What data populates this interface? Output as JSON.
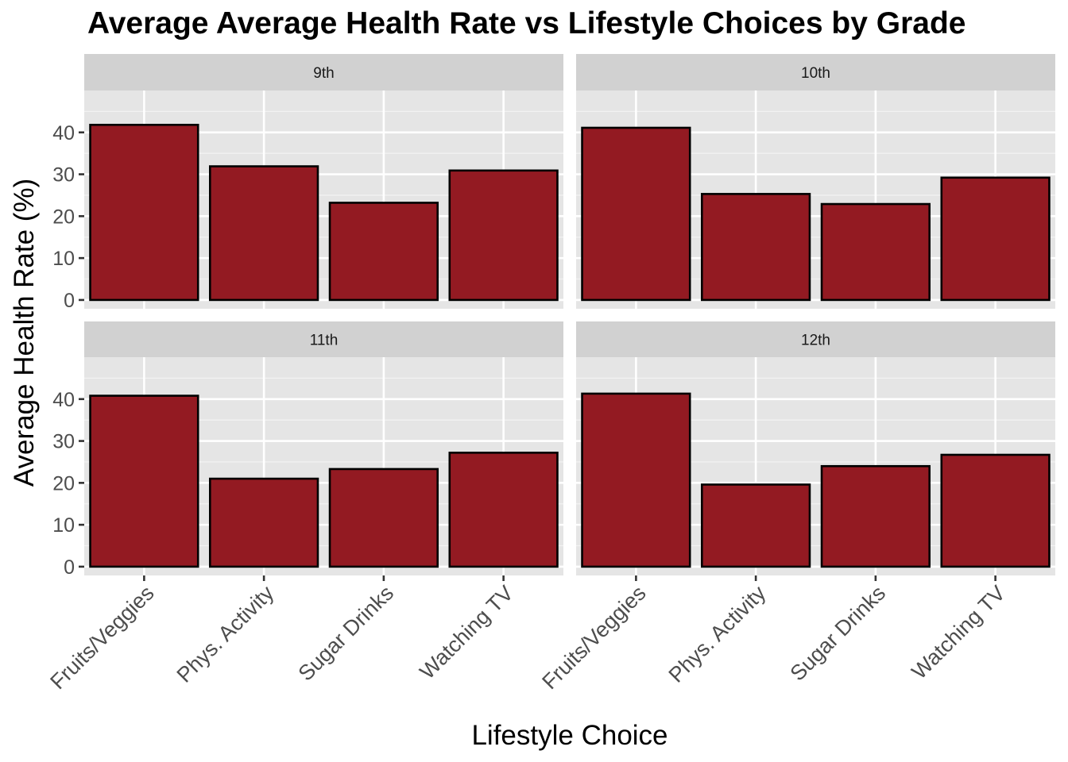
{
  "chart_data": {
    "type": "bar",
    "title": "Average Average Health Rate vs Lifestyle Choices by Grade",
    "xlabel": "Lifestyle Choice",
    "ylabel": "Average Health Rate (%)",
    "categories": [
      "Fruits/Veggies",
      "Phys. Activity",
      "Sugar Drinks",
      "Watching TV"
    ],
    "y_ticks": [
      0,
      10,
      20,
      30,
      40
    ],
    "ylim": [
      -2.1,
      50
    ],
    "grid": true,
    "legend": "none",
    "bar_color": "#931a22",
    "bar_outline": "#000000",
    "panel_background": "#e5e5e5",
    "strip_background": "#d1d1d1",
    "facets": [
      {
        "label": "9th",
        "values": [
          41.8,
          31.9,
          23.2,
          30.9
        ]
      },
      {
        "label": "10th",
        "values": [
          41.1,
          25.3,
          22.9,
          29.2
        ]
      },
      {
        "label": "11th",
        "values": [
          40.8,
          21.0,
          23.3,
          27.2
        ]
      },
      {
        "label": "12th",
        "values": [
          41.3,
          19.6,
          24.0,
          26.7
        ]
      }
    ]
  }
}
